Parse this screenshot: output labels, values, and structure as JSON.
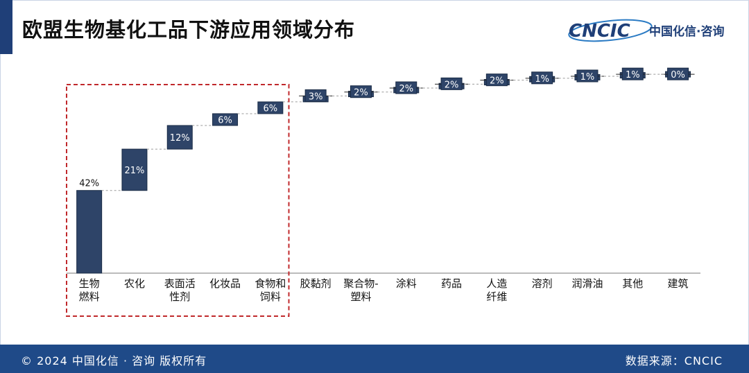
{
  "header": {
    "title": "欧盟生物基化工品下游应用领域分布",
    "logo_text": "CNCIC",
    "logo_subtext": "中国化信·咨询"
  },
  "footer": {
    "copyright": "© 2024 中国化信 · 咨询 版权所有",
    "source": "数据来源：CNCIC"
  },
  "colors": {
    "bar": "#2e4468",
    "bar_border": "#1a2b45",
    "highlight_box": "#c0282b",
    "connector": "#9a9a9a",
    "footer_bg": "#1f4a88",
    "accent": "#1f3f78"
  },
  "chart_data": {
    "type": "bar",
    "subtype": "waterfall",
    "title": "欧盟生物基化工品下游应用领域分布",
    "categories": [
      [
        "生物",
        "燃料"
      ],
      [
        "农化"
      ],
      [
        "表面活",
        "性剂"
      ],
      [
        "化妆品"
      ],
      [
        "食物和",
        "饲料"
      ],
      [
        "胶黏剂"
      ],
      [
        "聚合物-",
        "塑料"
      ],
      [
        "涂料"
      ],
      [
        "药品"
      ],
      [
        "人造",
        "纤维"
      ],
      [
        "溶剂"
      ],
      [
        "润滑油"
      ],
      [
        "其他"
      ],
      [
        "建筑"
      ]
    ],
    "values": [
      42,
      21,
      12,
      6,
      6,
      3,
      2,
      2,
      2,
      2,
      1,
      1,
      1,
      0
    ],
    "labels": [
      "42%",
      "21%",
      "12%",
      "6%",
      "6%",
      "3%",
      "2%",
      "2%",
      "2%",
      "2%",
      "1%",
      "1%",
      "1%",
      "0%"
    ],
    "ylim": [
      0,
      100
    ],
    "grid": false,
    "highlight_group": [
      0,
      1,
      2,
      3,
      4
    ]
  }
}
